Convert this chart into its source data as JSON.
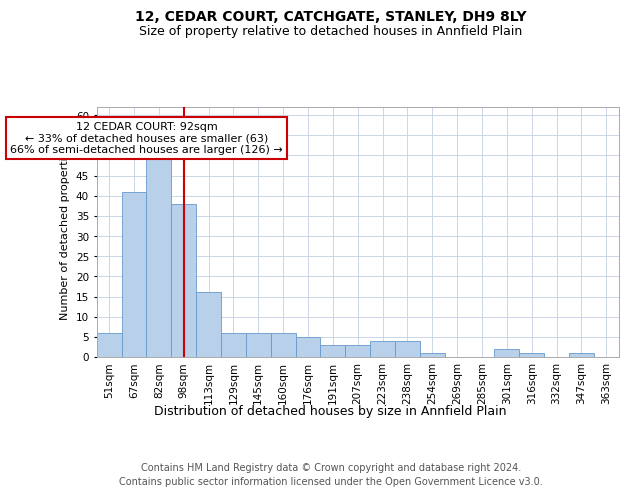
{
  "title": "12, CEDAR COURT, CATCHGATE, STANLEY, DH9 8LY",
  "subtitle": "Size of property relative to detached houses in Annfield Plain",
  "xlabel": "Distribution of detached houses by size in Annfield Plain",
  "ylabel": "Number of detached properties",
  "categories": [
    "51sqm",
    "67sqm",
    "82sqm",
    "98sqm",
    "113sqm",
    "129sqm",
    "145sqm",
    "160sqm",
    "176sqm",
    "191sqm",
    "207sqm",
    "223sqm",
    "238sqm",
    "254sqm",
    "269sqm",
    "285sqm",
    "301sqm",
    "316sqm",
    "332sqm",
    "347sqm",
    "363sqm"
  ],
  "values": [
    6,
    41,
    50,
    38,
    16,
    6,
    6,
    6,
    5,
    3,
    3,
    4,
    4,
    1,
    0,
    0,
    2,
    1,
    0,
    1,
    0
  ],
  "bar_color": "#b8d0ea",
  "bar_edge_color": "#6699cc",
  "vline_x_index": 3,
  "vline_color": "#cc0000",
  "annotation_text": "12 CEDAR COURT: 92sqm\n← 33% of detached houses are smaller (63)\n66% of semi-detached houses are larger (126) →",
  "annotation_box_color": "#ffffff",
  "annotation_box_edge": "#cc0000",
  "ylim": [
    0,
    62
  ],
  "yticks": [
    0,
    5,
    10,
    15,
    20,
    25,
    30,
    35,
    40,
    45,
    50,
    55,
    60
  ],
  "footer": "Contains HM Land Registry data © Crown copyright and database right 2024.\nContains public sector information licensed under the Open Government Licence v3.0.",
  "bg_color": "#ffffff",
  "grid_color": "#ccd6e8",
  "title_fontsize": 10,
  "subtitle_fontsize": 9,
  "xlabel_fontsize": 9,
  "ylabel_fontsize": 8,
  "tick_fontsize": 7.5,
  "footer_fontsize": 7,
  "ann_fontsize": 8
}
